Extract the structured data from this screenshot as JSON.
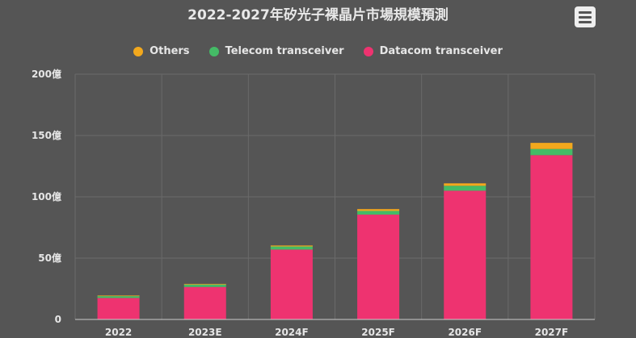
{
  "chart_data": {
    "type": "bar",
    "stacked": true,
    "title": "2022-2027年矽光子裸晶片市場規模預測",
    "categories": [
      "2022",
      "2023E",
      "2024F",
      "2025F",
      "2026F",
      "2027F"
    ],
    "series": [
      {
        "name": "Datacom transceiver",
        "color": "#ee3370",
        "values": [
          17.5,
          26.5,
          57,
          85.5,
          105,
          134
        ]
      },
      {
        "name": "Telecom transceiver",
        "color": "#44bb66",
        "values": [
          1.5,
          2,
          2.5,
          3,
          4,
          5
        ]
      },
      {
        "name": "Others",
        "color": "#f2a81d",
        "values": [
          0.5,
          0.5,
          0.8,
          1.5,
          2,
          5
        ]
      }
    ],
    "legend_order": [
      "Others",
      "Telecom transceiver",
      "Datacom transceiver"
    ],
    "legend_placement": "top-center",
    "ylim": [
      0,
      200
    ],
    "yticks": [
      0,
      50,
      100,
      150,
      200
    ],
    "ytick_labels": [
      "0",
      "50億",
      "100億",
      "150億",
      "200億"
    ],
    "grid": true
  },
  "colors": {
    "background": "#555555",
    "grid": "#6a6a6a",
    "text": "#e6e6e6"
  },
  "menu_icon": "hamburger-menu-icon"
}
